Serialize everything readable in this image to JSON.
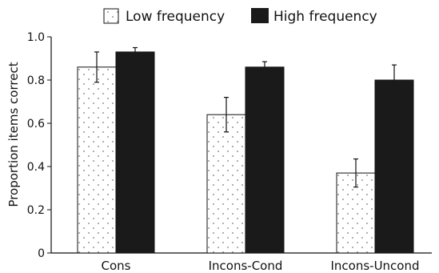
{
  "chart_data": {
    "type": "bar",
    "categories": [
      "Cons",
      "Incons-Cond",
      "Incons-Uncond"
    ],
    "series": [
      {
        "name": "Low frequency",
        "values": [
          0.86,
          0.64,
          0.37
        ],
        "errors": [
          0.07,
          0.08,
          0.065
        ],
        "fill": "dotted",
        "color": "#ffffff"
      },
      {
        "name": "High frequency",
        "values": [
          0.93,
          0.86,
          0.8
        ],
        "errors": [
          0.02,
          0.025,
          0.07
        ],
        "fill": "solid",
        "color": "#1a1a1a"
      }
    ],
    "ylabel": "Proportion items correct",
    "ylim": [
      0,
      1.0
    ],
    "yticks": [
      "0",
      "0.2",
      "0.4",
      "0.6",
      "0.8",
      "1.0"
    ],
    "yticks_values": [
      0,
      0.2,
      0.4,
      0.6,
      0.8,
      1.0
    ],
    "legend_position": "top",
    "grid": false
  }
}
